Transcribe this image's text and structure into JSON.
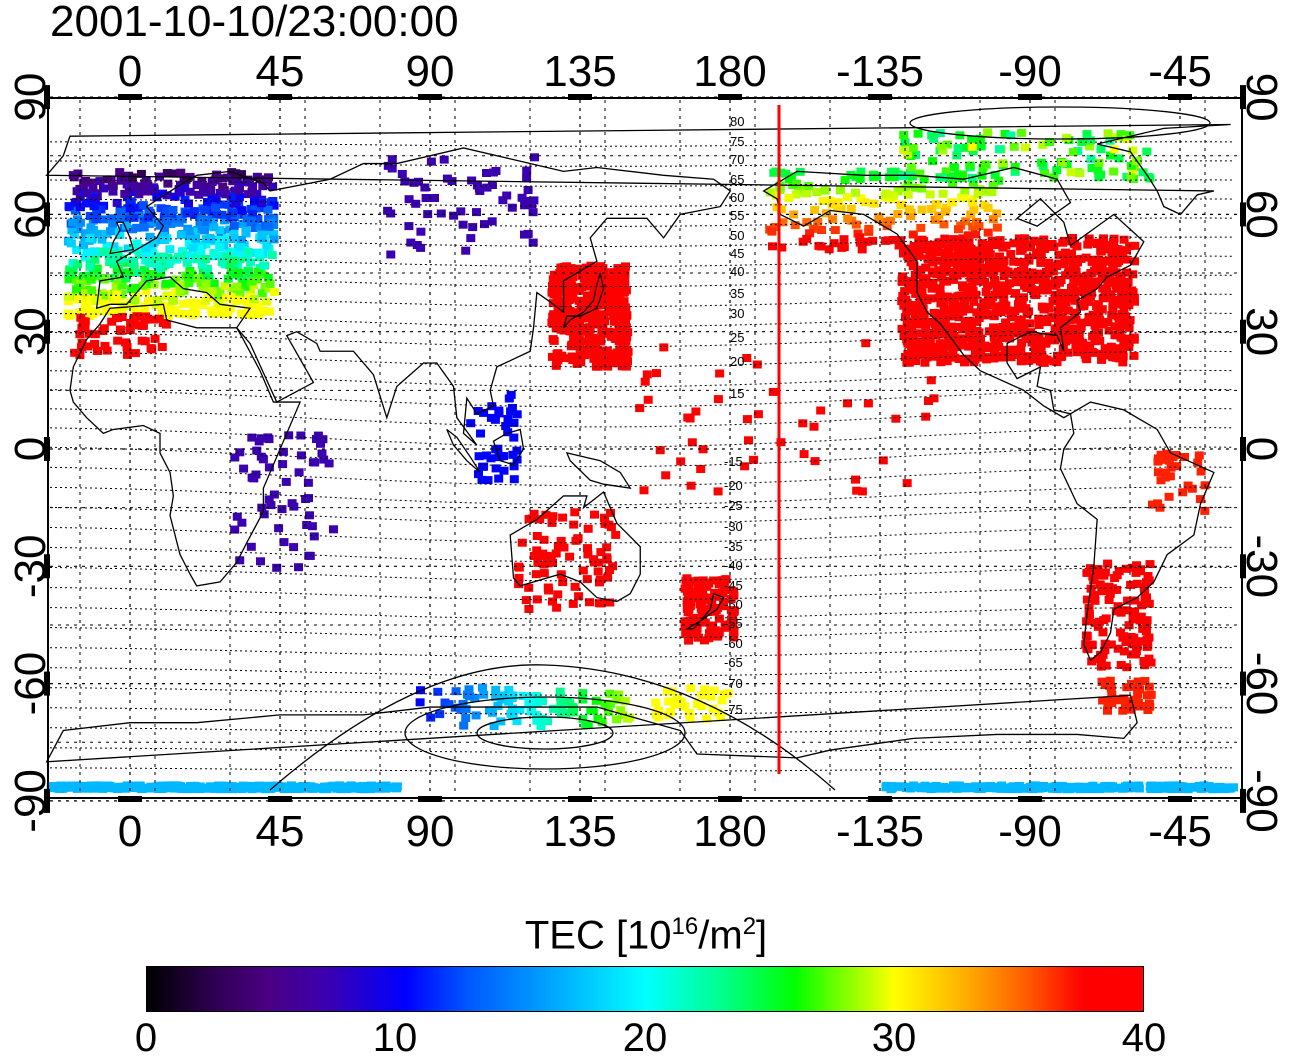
{
  "title": "2001-10-10/23:00:00",
  "lon_ticks": [
    "0",
    "45",
    "90",
    "135",
    "180",
    "-135",
    "-90",
    "-45"
  ],
  "lat_ticks": [
    "90",
    "60",
    "30",
    "0",
    "-30",
    "-60",
    "-90"
  ],
  "mlat_labels_north": [
    "80",
    "75",
    "70",
    "65",
    "60",
    "55",
    "50",
    "45",
    "40",
    "35",
    "30",
    "25",
    "20",
    "15"
  ],
  "mlat_labels_south": [
    "-15",
    "-20",
    "-25",
    "-30",
    "-35",
    "-40",
    "-45",
    "-50",
    "-55",
    "-60",
    "-65",
    "-70",
    "-75"
  ],
  "colorbar": {
    "title_main": "TEC  [10",
    "title_exp1": "16",
    "title_mid": "/m",
    "title_exp2": "2",
    "title_end": "]",
    "ticks": [
      "0",
      "10",
      "20",
      "30",
      "40"
    ],
    "min": 0,
    "max": 40
  },
  "colors": {
    "midnight_line": "#ff0000"
  }
}
